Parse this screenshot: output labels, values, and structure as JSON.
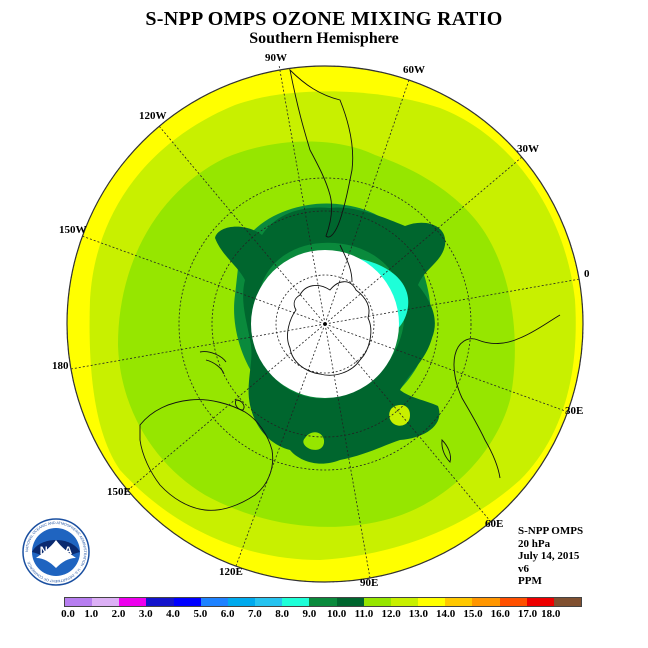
{
  "title": "S-NPP OMPS OZONE MIXING RATIO",
  "subtitle": "Southern Hemisphere",
  "logo_text": "NOAA",
  "logo_ring_text": "NATIONAL OCEANIC AND ATMOSPHERIC ADMINISTRATION · U.S. DEPARTMENT OF COMMERCE",
  "longitude_labels": [
    {
      "id": "90w",
      "text": "90W"
    },
    {
      "id": "60w",
      "text": "60W"
    },
    {
      "id": "30w",
      "text": "30W"
    },
    {
      "id": "120w",
      "text": "120W"
    },
    {
      "id": "150w",
      "text": "150W"
    },
    {
      "id": "0",
      "text": "0"
    },
    {
      "id": "180",
      "text": "180"
    },
    {
      "id": "30e",
      "text": "30E"
    },
    {
      "id": "150e",
      "text": "150E"
    },
    {
      "id": "60e",
      "text": "60E"
    },
    {
      "id": "120e",
      "text": "120E"
    },
    {
      "id": "90e",
      "text": "90E"
    }
  ],
  "info": {
    "instrument": "S-NPP OMPS",
    "level": "20 hPa",
    "date": "July 14, 2015",
    "version": "v6",
    "units": "PPM"
  },
  "colorbar": {
    "labels": [
      "0.0",
      "1.0",
      "2.0",
      "3.0",
      "4.0",
      "5.0",
      "6.0",
      "7.0",
      "8.0",
      "9.0",
      "10.0",
      "11.0",
      "12.0",
      "13.0",
      "14.0",
      "15.0",
      "16.0",
      "17.0",
      "18.0"
    ],
    "colors": [
      "#b77ef0",
      "#dcb0f5",
      "#ee00ee",
      "#1414cc",
      "#0000ff",
      "#1e82ff",
      "#00aaee",
      "#26c3f0",
      "#1effd8",
      "#0a8a3c",
      "#00662e",
      "#96e600",
      "#c8f000",
      "#ffff00",
      "#ffc800",
      "#ff9600",
      "#ff5000",
      "#ee0000",
      "#805030"
    ]
  },
  "map_colors": {
    "yellow": "#ffff00",
    "yellow_green": "#c8f000",
    "light_green": "#96e600",
    "green": "#0a8a3c",
    "dark_green": "#00662e",
    "cyan": "#1effd8",
    "polar_cap": "#ffffff"
  }
}
